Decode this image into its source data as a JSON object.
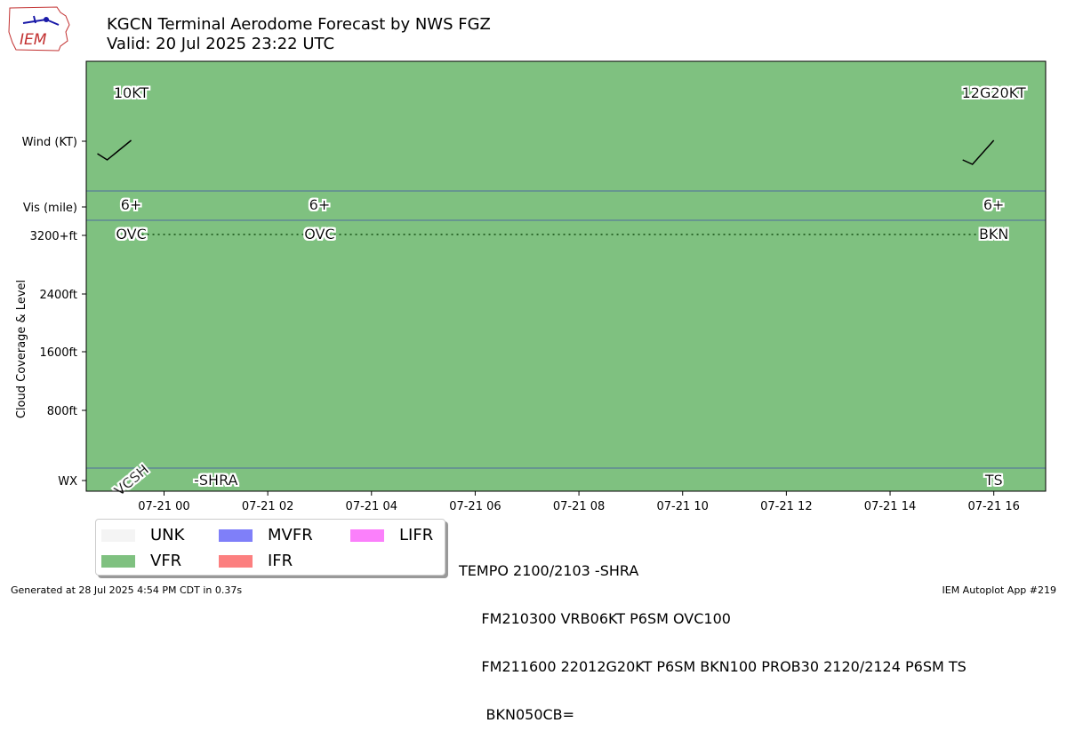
{
  "header": {
    "title_line1": "KGCN Terminal Aerodome Forecast by NWS FGZ",
    "title_line2": "Valid: 20 Jul 2025 23:22 UTC"
  },
  "logo": {
    "text": "IEM"
  },
  "chart_data": {
    "type": "table",
    "x_unit": "UTC",
    "x_range": [
      "2025-07-20 22:30",
      "2025-07-21 17:00"
    ],
    "x_ticks": [
      "07-21 00",
      "07-21 02",
      "07-21 04",
      "07-21 06",
      "07-21 08",
      "07-21 10",
      "07-21 12",
      "07-21 14",
      "07-21 16"
    ],
    "y_ticks": [
      "Wind (KT)",
      "Vis (mile)",
      "3200+ft",
      "2400ft",
      "1600ft",
      "800ft",
      "WX"
    ],
    "ylabel": "Cloud Coverage & Level",
    "background_category": "VFR",
    "forecast_times": [
      "2025-07-20 23:22",
      "2025-07-21 03:00",
      "2025-07-21 16:00"
    ],
    "wind": [
      {
        "time": "2025-07-20 23:22",
        "label": "10KT",
        "speed_kt": 10,
        "direction": "VRB"
      },
      {
        "time": "2025-07-21 16:00",
        "label": "12G20KT",
        "speed_kt": 12,
        "gust_kt": 20,
        "direction_deg": 220
      }
    ],
    "visibility": [
      {
        "time": "2025-07-20 23:22",
        "label": "6+"
      },
      {
        "time": "2025-07-21 03:00",
        "label": "6+"
      },
      {
        "time": "2025-07-21 16:00",
        "label": "6+"
      }
    ],
    "clouds": [
      {
        "time": "2025-07-20 23:22",
        "label": "OVC",
        "level_ft": 3200
      },
      {
        "time": "2025-07-21 03:00",
        "label": "OVC",
        "level_ft": 3200
      },
      {
        "time": "2025-07-21 16:00",
        "label": "BKN",
        "level_ft": 3200
      }
    ],
    "weather": [
      {
        "time": "2025-07-20 23:22",
        "label": "VCSH",
        "rotated": true
      },
      {
        "time": "2025-07-21 01:00",
        "label": "-SHRA"
      },
      {
        "time": "2025-07-21 16:00",
        "label": "TS"
      }
    ],
    "legend": [
      {
        "label": "UNK",
        "color": "#f4f4f4"
      },
      {
        "label": "VFR",
        "color": "#7fc180"
      },
      {
        "label": "MVFR",
        "color": "#7f7ff9"
      },
      {
        "label": "IFR",
        "color": "#fc7f7f"
      },
      {
        "label": "LIFR",
        "color": "#fb80fb"
      }
    ],
    "colors": {
      "vfr": "#7fc180",
      "separator": "#4f6aa0",
      "cloud_line": "#2e6b2e"
    }
  },
  "taf_text": {
    "line1": "TEMPO 2100/2103 -SHRA",
    "line2": "     FM210300 VRB06KT P6SM OVC100",
    "line3": "     FM211600 22012G20KT P6SM BKN100 PROB30 2120/2124 P6SM TS",
    "line4": "      BKN050CB="
  },
  "footer": {
    "generated": "Generated at 28 Jul 2025 4:54 PM CDT in 0.37s",
    "app": "IEM Autoplot App #219"
  }
}
